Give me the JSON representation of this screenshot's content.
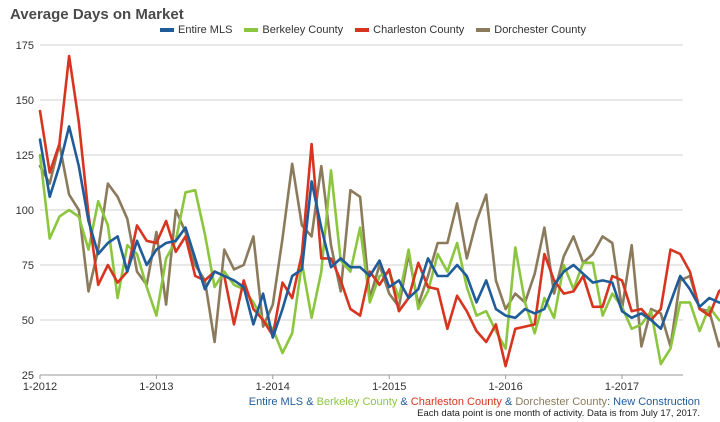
{
  "chart_data": {
    "type": "line",
    "title": "Average Days on Market",
    "xlabel": "",
    "ylabel": "",
    "ylim": [
      25,
      175
    ],
    "yticks": [
      25,
      50,
      75,
      100,
      125,
      150,
      175
    ],
    "x_tick_labels": [
      "1-2012",
      "1-2013",
      "1-2014",
      "1-2015",
      "1-2016",
      "1-2017"
    ],
    "grid": true,
    "legend_position": "top",
    "series": [
      {
        "name": "Entire MLS",
        "color": "#1f5c99",
        "values": [
          132,
          106,
          120,
          138,
          120,
          95,
          80,
          85,
          88,
          72,
          86,
          75,
          82,
          85,
          86,
          92,
          78,
          64,
          72,
          70,
          68,
          65,
          48,
          62,
          42,
          55,
          70,
          73,
          113,
          92,
          74,
          78,
          74,
          74,
          70,
          77,
          65,
          68,
          60,
          64,
          78,
          70,
          70,
          75,
          70,
          58,
          68,
          55,
          52,
          51,
          55,
          53,
          55,
          66,
          72,
          75,
          71,
          67,
          68,
          67,
          54,
          51,
          53,
          50,
          46,
          58,
          70,
          64,
          56,
          60,
          58,
          57
        ],
        "labels": []
      },
      {
        "name": "Berkeley County",
        "color": "#8cc63f",
        "values": [
          125,
          87,
          97,
          100,
          97,
          82,
          104,
          93,
          60,
          84,
          80,
          65,
          52,
          78,
          86,
          108,
          109,
          89,
          65,
          72,
          66,
          64,
          58,
          50,
          46,
          35,
          44,
          76,
          51,
          72,
          118,
          77,
          72,
          92,
          58,
          70,
          72,
          60,
          82,
          55,
          63,
          80,
          72,
          85,
          65,
          52,
          54,
          45,
          37,
          83,
          58,
          44,
          60,
          51,
          75,
          64,
          76,
          76,
          52,
          62,
          56,
          46,
          48,
          54,
          30,
          37,
          58,
          58,
          45,
          56,
          50,
          48
        ],
        "labels": []
      },
      {
        "name": "Charleston County",
        "color": "#d7351f",
        "values": [
          145,
          117,
          130,
          170,
          140,
          98,
          66,
          75,
          67,
          72,
          93,
          86,
          85,
          95,
          81,
          88,
          70,
          68,
          72,
          70,
          48,
          68,
          55,
          50,
          43,
          67,
          60,
          80,
          130,
          78,
          78,
          68,
          55,
          52,
          72,
          66,
          73,
          54,
          60,
          76,
          65,
          64,
          46,
          61,
          54,
          45,
          40,
          48,
          29,
          46,
          47,
          48,
          80,
          68,
          62,
          63,
          70,
          56,
          56,
          70,
          68,
          54,
          55,
          50,
          55,
          82,
          80,
          72,
          55,
          52,
          63,
          67
        ],
        "labels": []
      },
      {
        "name": "Dorchester County",
        "color": "#8b7b5c",
        "values": [
          120,
          112,
          130,
          107,
          100,
          63,
          82,
          112,
          106,
          96,
          72,
          66,
          90,
          57,
          100,
          90,
          75,
          68,
          40,
          82,
          73,
          75,
          88,
          47,
          57,
          87,
          121,
          93,
          88,
          120,
          84,
          63,
          109,
          106,
          60,
          75,
          62,
          56,
          80,
          57,
          70,
          85,
          85,
          103,
          78,
          95,
          107,
          68,
          55,
          62,
          58,
          71,
          92,
          62,
          79,
          88,
          76,
          80,
          88,
          85,
          55,
          84,
          38,
          55,
          53,
          38,
          68,
          70,
          55,
          54,
          38,
          48
        ],
        "labels": []
      }
    ]
  },
  "footer": {
    "line1_parts": [
      {
        "text": "Entire MLS",
        "color": "#1f5c99"
      },
      {
        "text": " & ",
        "color": "#1f5c99"
      },
      {
        "text": "Berkeley County",
        "color": "#8cc63f"
      },
      {
        "text": " & ",
        "color": "#1f5c99"
      },
      {
        "text": "Charleston County",
        "color": "#d7351f"
      },
      {
        "text": " & ",
        "color": "#1f5c99"
      },
      {
        "text": "Dorchester County",
        "color": "#8b7b5c"
      },
      {
        "text": ": New Construction",
        "color": "#1f5c99"
      }
    ],
    "line2": "Each data point is one month of activity. Data is from July 17, 2017."
  }
}
